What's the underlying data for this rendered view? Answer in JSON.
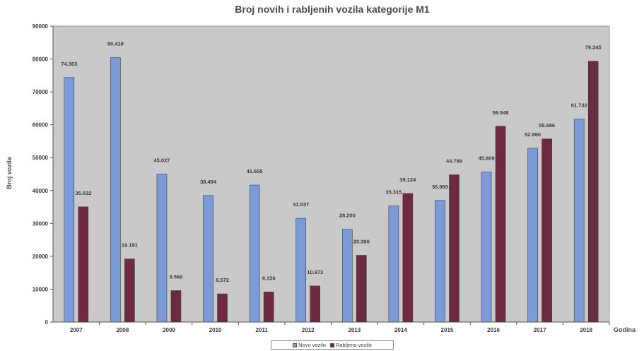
{
  "chart_data": {
    "type": "bar",
    "title": "Broj novih i rabljenih vozila kategorije M1",
    "xlabel": "Godina",
    "ylabel": "Broj vozila",
    "categories": [
      "2007",
      "2008",
      "2009",
      "2010",
      "2011",
      "2012",
      "2013",
      "2014",
      "2015",
      "2016",
      "2017",
      "2018"
    ],
    "series": [
      {
        "name": "Novo vozilo",
        "color": "#7b9ad9",
        "values": [
          74363,
          80419,
          45027,
          38494,
          41655,
          31537,
          28200,
          35315,
          36983,
          45609,
          52860,
          61732
        ],
        "labels": [
          "74.363",
          "80.419",
          "45.027",
          "38.494",
          "41.655",
          "31.537",
          "28.200",
          "35.315",
          "36.983",
          "45.609",
          "52.860",
          "61.732"
        ]
      },
      {
        "name": "Rabljeno vozilo",
        "color": "#6e2a3e",
        "values": [
          35032,
          19191,
          9560,
          8572,
          9156,
          10973,
          20300,
          39124,
          44789,
          59548,
          55686,
          79345
        ],
        "labels": [
          "35.032",
          "19.191",
          "9.560",
          "8.572",
          "9.156",
          "10.973",
          "20.300",
          "39.124",
          "44.789",
          "59.548",
          "55.686",
          "79.345"
        ]
      }
    ],
    "ylim": [
      0,
      90000
    ],
    "yticks": [
      "0",
      "10000",
      "20000",
      "30000",
      "40000",
      "50000",
      "60000",
      "70000",
      "80000",
      "90000"
    ],
    "grid": false,
    "plot_background": "#c9c9c9",
    "legend_position": "bottom"
  }
}
